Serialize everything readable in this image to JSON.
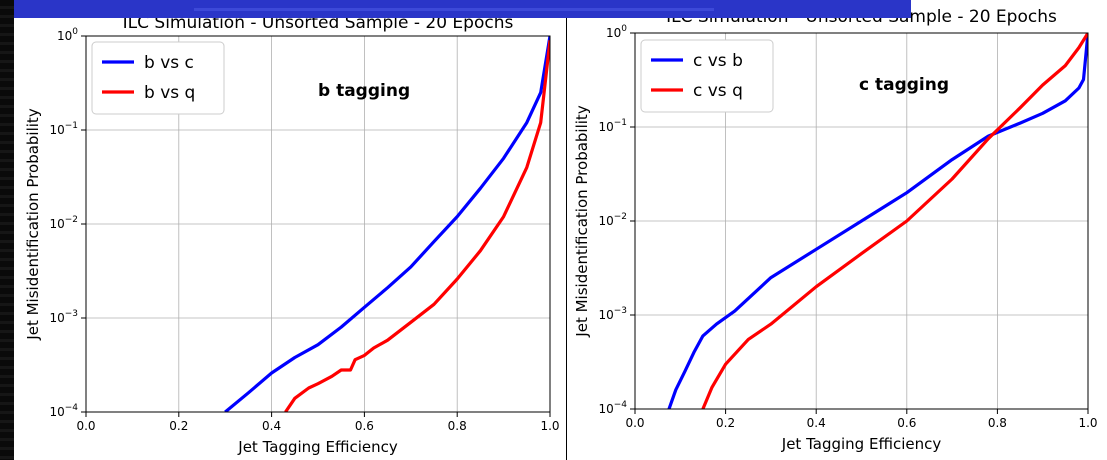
{
  "chart_data": [
    {
      "type": "line",
      "title": "ILC Simulation - Unsorted Sample - 20 Epochs",
      "annotation": "b tagging",
      "xlabel": "Jet Tagging Efficiency",
      "ylabel": "Jet Misidentification Probability",
      "xlim": [
        0.0,
        1.0
      ],
      "ylim": [
        0.0001,
        1
      ],
      "yscale": "log",
      "grid": true,
      "legend_position": "top-left",
      "x_ticks": [
        "0.0",
        "0.2",
        "0.4",
        "0.6",
        "0.8",
        "1.0"
      ],
      "y_ticks": [
        {
          "base": "10",
          "exp": "−4",
          "value": 0.0001
        },
        {
          "base": "10",
          "exp": "−3",
          "value": 0.001
        },
        {
          "base": "10",
          "exp": "−2",
          "value": 0.01
        },
        {
          "base": "10",
          "exp": "−1",
          "value": 0.1
        },
        {
          "base": "10",
          "exp": "0",
          "value": 1
        }
      ],
      "series": [
        {
          "name": "b vs c",
          "color": "#0000ff",
          "x": [
            0.3,
            0.35,
            0.4,
            0.45,
            0.5,
            0.55,
            0.6,
            0.65,
            0.7,
            0.75,
            0.8,
            0.85,
            0.9,
            0.95,
            0.98,
            1.0
          ],
          "y": [
            0.0001,
            0.00016,
            0.00026,
            0.00038,
            0.00052,
            0.0008,
            0.0013,
            0.0021,
            0.0035,
            0.0065,
            0.012,
            0.024,
            0.05,
            0.12,
            0.25,
            1.0
          ]
        },
        {
          "name": "b vs q",
          "color": "#ff0000",
          "x": [
            0.43,
            0.45,
            0.48,
            0.5,
            0.53,
            0.55,
            0.57,
            0.58,
            0.6,
            0.62,
            0.65,
            0.7,
            0.75,
            0.8,
            0.85,
            0.9,
            0.95,
            0.98,
            1.0
          ],
          "y": [
            0.0001,
            0.00014,
            0.00018,
            0.0002,
            0.00024,
            0.00028,
            0.00028,
            0.00036,
            0.0004,
            0.00048,
            0.00058,
            0.0009,
            0.0014,
            0.0026,
            0.0052,
            0.012,
            0.04,
            0.12,
            0.9
          ]
        }
      ]
    },
    {
      "type": "line",
      "title": "ILC Simulation - Unsorted Sample - 20 Epochs",
      "annotation": "c tagging",
      "xlabel": "Jet Tagging Efficiency",
      "ylabel": "Jet Misidentification Probability",
      "xlim": [
        0.0,
        1.0
      ],
      "ylim": [
        0.0001,
        1
      ],
      "yscale": "log",
      "grid": true,
      "legend_position": "top-left",
      "x_ticks": [
        "0.0",
        "0.2",
        "0.4",
        "0.6",
        "0.8",
        "1.0"
      ],
      "y_ticks": [
        {
          "base": "10",
          "exp": "−4",
          "value": 0.0001
        },
        {
          "base": "10",
          "exp": "−3",
          "value": 0.001
        },
        {
          "base": "10",
          "exp": "−2",
          "value": 0.01
        },
        {
          "base": "10",
          "exp": "−1",
          "value": 0.1
        },
        {
          "base": "10",
          "exp": "0",
          "value": 1
        }
      ],
      "series": [
        {
          "name": "c vs b",
          "color": "#0000ff",
          "x": [
            0.075,
            0.09,
            0.11,
            0.13,
            0.15,
            0.18,
            0.22,
            0.3,
            0.4,
            0.5,
            0.6,
            0.7,
            0.78,
            0.85,
            0.9,
            0.95,
            0.98,
            0.99,
            1.0
          ],
          "y": [
            0.0001,
            0.00016,
            0.00025,
            0.0004,
            0.0006,
            0.0008,
            0.0011,
            0.0025,
            0.005,
            0.01,
            0.02,
            0.045,
            0.08,
            0.11,
            0.14,
            0.19,
            0.26,
            0.32,
            1.0
          ]
        },
        {
          "name": "c vs q",
          "color": "#ff0000",
          "x": [
            0.15,
            0.17,
            0.2,
            0.25,
            0.3,
            0.4,
            0.5,
            0.6,
            0.7,
            0.78,
            0.85,
            0.9,
            0.95,
            0.98,
            1.0
          ],
          "y": [
            0.0001,
            0.00017,
            0.0003,
            0.00055,
            0.0008,
            0.002,
            0.0045,
            0.01,
            0.028,
            0.075,
            0.16,
            0.28,
            0.45,
            0.7,
            1.0
          ]
        }
      ]
    }
  ]
}
